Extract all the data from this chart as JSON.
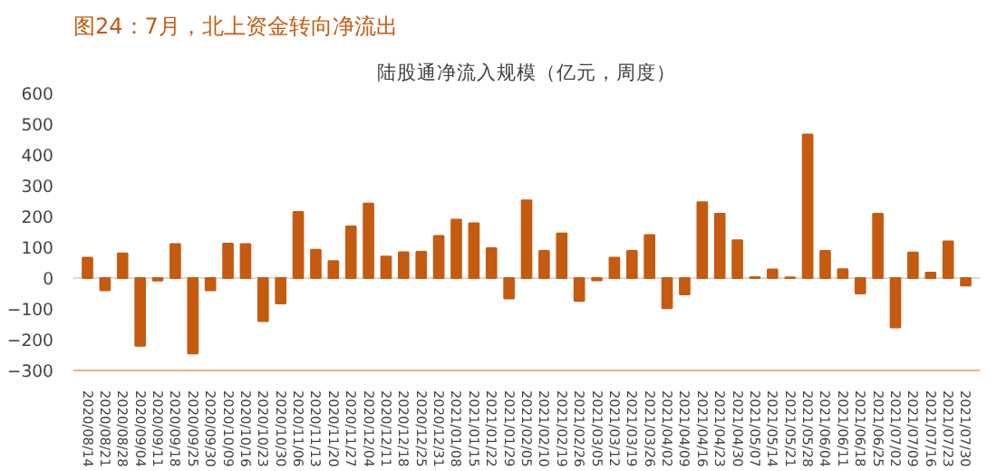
{
  "chart_data": {
    "type": "bar",
    "title": "图24：7月，北上资金转向净流出",
    "subtitle": "陆股通净流入规模（亿元，周度）",
    "categories": [
      "2020/08/14",
      "2020/08/21",
      "2020/08/28",
      "2020/09/04",
      "2020/09/11",
      "2020/09/18",
      "2020/09/25",
      "2020/09/30",
      "2020/10/09",
      "2020/10/16",
      "2020/10/23",
      "2020/10/30",
      "2020/11/06",
      "2020/11/13",
      "2020/11/20",
      "2020/11/27",
      "2020/12/04",
      "2020/12/11",
      "2020/12/18",
      "2020/12/25",
      "2020/12/31",
      "2021/01/08",
      "2021/01/15",
      "2021/01/22",
      "2021/01/29",
      "2021/02/05",
      "2021/02/10",
      "2021/02/19",
      "2021/02/26",
      "2021/03/05",
      "2021/03/12",
      "2021/03/19",
      "2021/03/26",
      "2021/04/02",
      "2021/04/09",
      "2021/04/16",
      "2021/04/23",
      "2021/04/30",
      "2021/05/07",
      "2021/05/14",
      "2021/05/21",
      "2021/05/28",
      "2021/06/04",
      "2021/06/11",
      "2021/06/18",
      "2021/06/25",
      "2021/07/02",
      "2021/07/09",
      "2021/07/16",
      "2021/07/23",
      "2021/07/30"
    ],
    "values": [
      66,
      -40,
      80,
      -220,
      -8,
      110,
      -245,
      -40,
      112,
      110,
      -140,
      -82,
      215,
      92,
      55,
      168,
      242,
      70,
      84,
      85,
      137,
      190,
      178,
      97,
      -66,
      252,
      88,
      145,
      -74,
      -7,
      66,
      88,
      140,
      -98,
      -53,
      246,
      209,
      123,
      3,
      28,
      2,
      466,
      88,
      29,
      -50,
      209,
      -160,
      83,
      18,
      119,
      -24
    ],
    "color": "#c55a11",
    "ylim": [
      -300,
      600
    ],
    "yticks": [
      -300,
      -200,
      -100,
      0,
      100,
      200,
      300,
      400,
      500,
      600
    ],
    "grid": false,
    "ref_lines": [
      {
        "axis": "y",
        "value": 0,
        "color": "#d9d9d9"
      }
    ]
  }
}
